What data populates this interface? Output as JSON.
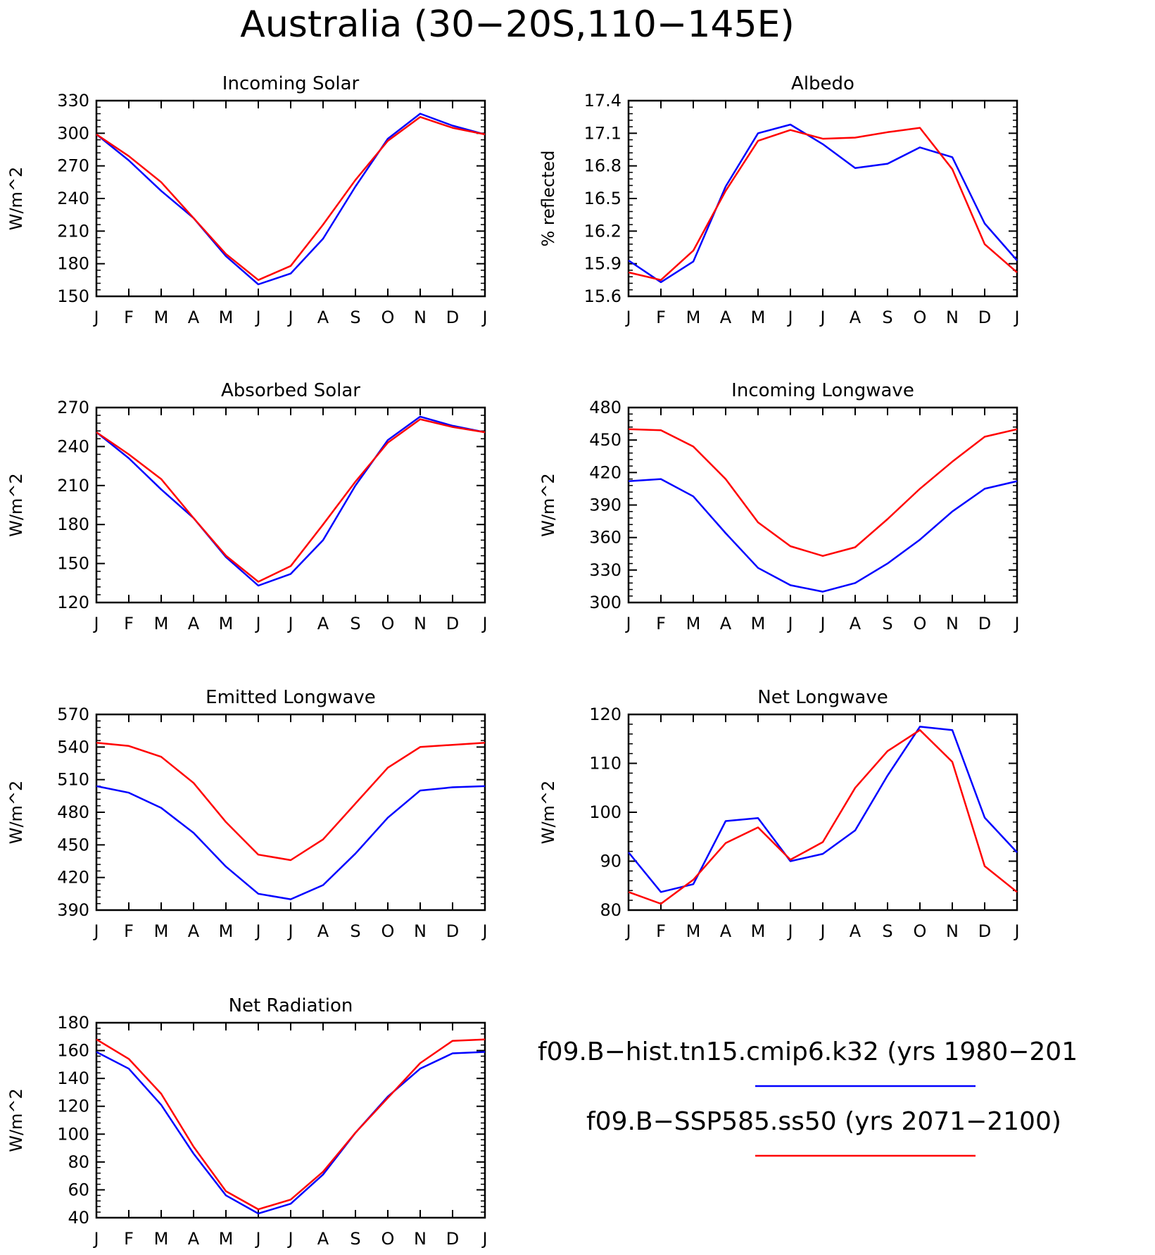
{
  "figure": {
    "title": "Australia (30−20S,110−145E)"
  },
  "colors": {
    "series_1": "#0000ff",
    "series_2": "#ff0000",
    "axes": "#000000"
  },
  "legend": [
    {
      "label": "f09.B−hist.tn15.cmip6.k32 (yrs 1980−201",
      "color": "#0000ff"
    },
    {
      "label": "f09.B−SSP585.ss50 (yrs 2071−2100)",
      "color": "#ff0000"
    }
  ],
  "chart_data": [
    {
      "type": "line",
      "title": "Incoming Solar",
      "ylabel": "W/m^2",
      "categories": [
        "J",
        "F",
        "M",
        "A",
        "M",
        "J",
        "J",
        "A",
        "S",
        "O",
        "N",
        "D",
        "J"
      ],
      "ylim": [
        150,
        330
      ],
      "yticks": [
        150,
        180,
        210,
        240,
        270,
        300,
        330
      ],
      "ytick_labels": [
        "150",
        "180",
        "210",
        "240",
        "270",
        "300",
        "330"
      ],
      "series": [
        {
          "color": "#0000ff",
          "values": [
            299,
            275,
            247,
            222,
            187,
            161,
            171,
            203,
            251,
            295,
            318,
            307,
            299
          ]
        },
        {
          "color": "#ff0000",
          "values": [
            299,
            279,
            255,
            222,
            189,
            165,
            178,
            216,
            257,
            293,
            315,
            305,
            299
          ]
        }
      ]
    },
    {
      "type": "line",
      "title": "Albedo",
      "ylabel": "% reflected",
      "categories": [
        "J",
        "F",
        "M",
        "A",
        "M",
        "J",
        "J",
        "A",
        "S",
        "O",
        "N",
        "D",
        "J"
      ],
      "ylim": [
        15.6,
        17.4
      ],
      "yticks": [
        15.6,
        15.9,
        16.2,
        16.5,
        16.8,
        17.1,
        17.4
      ],
      "ytick_labels": [
        "15.6",
        "15.9",
        "16.2",
        "16.5",
        "16.8",
        "17.1",
        "17.4"
      ],
      "series": [
        {
          "color": "#0000ff",
          "values": [
            15.93,
            15.73,
            15.92,
            16.61,
            17.1,
            17.18,
            17.0,
            16.78,
            16.82,
            16.97,
            16.88,
            16.27,
            15.93
          ]
        },
        {
          "color": "#ff0000",
          "values": [
            15.82,
            15.75,
            16.02,
            16.57,
            17.03,
            17.13,
            17.05,
            17.06,
            17.11,
            17.15,
            16.77,
            16.08,
            15.82
          ]
        }
      ]
    },
    {
      "type": "line",
      "title": "Absorbed Solar",
      "ylabel": "W/m^2",
      "categories": [
        "J",
        "F",
        "M",
        "A",
        "M",
        "J",
        "J",
        "A",
        "S",
        "O",
        "N",
        "D",
        "J"
      ],
      "ylim": [
        120,
        270
      ],
      "yticks": [
        120,
        150,
        180,
        210,
        240,
        270
      ],
      "ytick_labels": [
        "120",
        "150",
        "180",
        "210",
        "240",
        "270"
      ],
      "series": [
        {
          "color": "#0000ff",
          "values": [
            251,
            231,
            207,
            185,
            155,
            133,
            142,
            168,
            210,
            245,
            263,
            256,
            251
          ]
        },
        {
          "color": "#ff0000",
          "values": [
            251,
            234,
            215,
            185,
            156,
            136,
            148,
            180,
            213,
            243,
            261,
            255,
            251
          ]
        }
      ]
    },
    {
      "type": "line",
      "title": "Incoming Longwave",
      "ylabel": "W/m^2",
      "categories": [
        "J",
        "F",
        "M",
        "A",
        "M",
        "J",
        "J",
        "A",
        "S",
        "O",
        "N",
        "D",
        "J"
      ],
      "ylim": [
        300,
        480
      ],
      "yticks": [
        300,
        330,
        360,
        390,
        420,
        450,
        480
      ],
      "ytick_labels": [
        "300",
        "330",
        "360",
        "390",
        "420",
        "450",
        "480"
      ],
      "series": [
        {
          "color": "#0000ff",
          "values": [
            412,
            414,
            398,
            364,
            332,
            316,
            310,
            318,
            336,
            358,
            384,
            405,
            412
          ]
        },
        {
          "color": "#ff0000",
          "values": [
            460,
            459,
            444,
            414,
            374,
            352,
            343,
            351,
            377,
            405,
            430,
            453,
            460
          ]
        }
      ]
    },
    {
      "type": "line",
      "title": "Emitted Longwave",
      "ylabel": "W/m^2",
      "categories": [
        "J",
        "F",
        "M",
        "A",
        "M",
        "J",
        "J",
        "A",
        "S",
        "O",
        "N",
        "D",
        "J"
      ],
      "ylim": [
        390,
        570
      ],
      "yticks": [
        390,
        420,
        450,
        480,
        510,
        540,
        570
      ],
      "ytick_labels": [
        "390",
        "420",
        "450",
        "480",
        "510",
        "540",
        "570"
      ],
      "series": [
        {
          "color": "#0000ff",
          "values": [
            504,
            498,
            484,
            461,
            430,
            405,
            400,
            413,
            442,
            475,
            500,
            503,
            504
          ]
        },
        {
          "color": "#ff0000",
          "values": [
            544,
            541,
            531,
            507,
            471,
            441,
            436,
            455,
            488,
            521,
            540,
            542,
            544
          ]
        }
      ]
    },
    {
      "type": "line",
      "title": "Net Longwave",
      "ylabel": "W/m^2",
      "categories": [
        "J",
        "F",
        "M",
        "A",
        "M",
        "J",
        "J",
        "A",
        "S",
        "O",
        "N",
        "D",
        "J"
      ],
      "ylim": [
        80,
        120
      ],
      "yticks": [
        80,
        90,
        100,
        110,
        120
      ],
      "ytick_labels": [
        "80",
        "90",
        "100",
        "110",
        "120"
      ],
      "series": [
        {
          "color": "#0000ff",
          "values": [
            91.8,
            83.7,
            85.3,
            98.2,
            98.8,
            90.0,
            91.5,
            96.3,
            107.5,
            117.5,
            116.8,
            98.9,
            91.8
          ]
        },
        {
          "color": "#ff0000",
          "values": [
            83.7,
            81.3,
            86.2,
            93.7,
            96.9,
            90.3,
            93.9,
            105.0,
            112.5,
            116.8,
            110.3,
            89.0,
            83.7
          ]
        }
      ]
    },
    {
      "type": "line",
      "title": "Net Radiation",
      "ylabel": "W/m^2",
      "categories": [
        "J",
        "F",
        "M",
        "A",
        "M",
        "J",
        "J",
        "A",
        "S",
        "O",
        "N",
        "D",
        "J"
      ],
      "ylim": [
        40,
        180
      ],
      "yticks": [
        40,
        60,
        80,
        100,
        120,
        140,
        160,
        180
      ],
      "ytick_labels": [
        "40",
        "60",
        "80",
        "100",
        "120",
        "140",
        "160",
        "180"
      ],
      "series": [
        {
          "color": "#0000ff",
          "values": [
            159,
            147,
            121,
            86,
            56,
            43,
            50,
            71,
            101,
            127,
            147,
            158,
            159
          ]
        },
        {
          "color": "#ff0000",
          "values": [
            168,
            154,
            129,
            91,
            59,
            46,
            53,
            73,
            101,
            126,
            151,
            167,
            168
          ]
        }
      ]
    }
  ]
}
